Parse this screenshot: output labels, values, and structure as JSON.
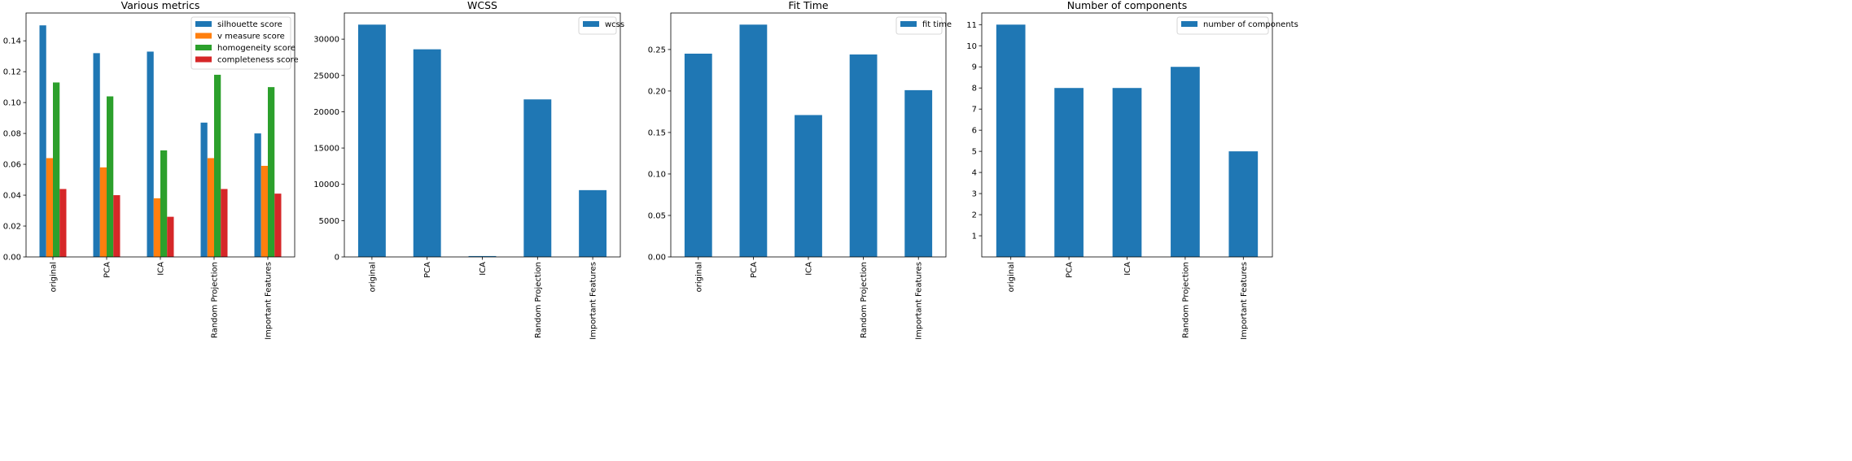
{
  "chart_data": [
    {
      "type": "bar",
      "title": "Various metrics",
      "categories": [
        "original",
        "PCA",
        "ICA",
        "Random Projection",
        "Important Features"
      ],
      "series": [
        {
          "name": "silhouette score",
          "color": "#1f77b4",
          "values": [
            0.15,
            0.132,
            0.133,
            0.087,
            0.08
          ]
        },
        {
          "name": "v measure score",
          "color": "#ff7f0e",
          "values": [
            0.064,
            0.058,
            0.038,
            0.064,
            0.059
          ]
        },
        {
          "name": "homogeneity score",
          "color": "#2ca02c",
          "values": [
            0.113,
            0.104,
            0.069,
            0.118,
            0.11
          ]
        },
        {
          "name": "completeness score",
          "color": "#d62728",
          "values": [
            0.044,
            0.04,
            0.026,
            0.044,
            0.041
          ]
        }
      ],
      "ylim": [
        0,
        0.158
      ],
      "yticks": [
        0.0,
        0.02,
        0.04,
        0.06,
        0.08,
        0.1,
        0.12,
        0.14
      ],
      "ytick_labels": [
        "0.00",
        "0.02",
        "0.04",
        "0.06",
        "0.08",
        "0.10",
        "0.12",
        "0.14"
      ],
      "legend": "top-right"
    },
    {
      "type": "bar",
      "title": "WCSS",
      "categories": [
        "original",
        "PCA",
        "ICA",
        "Random Projection",
        "Important Features"
      ],
      "series": [
        {
          "name": "wcss",
          "color": "#1f77b4",
          "values": [
            32000,
            28600,
            120,
            21700,
            9200
          ]
        }
      ],
      "ylim": [
        0,
        33600
      ],
      "yticks": [
        0,
        5000,
        10000,
        15000,
        20000,
        25000,
        30000
      ],
      "ytick_labels": [
        "0",
        "5000",
        "10000",
        "15000",
        "20000",
        "25000",
        "30000"
      ],
      "legend": "top-right"
    },
    {
      "type": "bar",
      "title": "Fit Time",
      "categories": [
        "original",
        "PCA",
        "ICA",
        "Random Projection",
        "Important Features"
      ],
      "series": [
        {
          "name": "fit time",
          "color": "#1f77b4",
          "values": [
            0.245,
            0.28,
            0.171,
            0.244,
            0.201
          ]
        }
      ],
      "ylim": [
        0,
        0.294
      ],
      "yticks": [
        0.0,
        0.05,
        0.1,
        0.15,
        0.2,
        0.25
      ],
      "ytick_labels": [
        "0.00",
        "0.05",
        "0.10",
        "0.15",
        "0.20",
        "0.25"
      ],
      "legend": "top-right"
    },
    {
      "type": "bar",
      "title": "Number of components",
      "categories": [
        "original",
        "PCA",
        "ICA",
        "Random Projection",
        "Important Features"
      ],
      "series": [
        {
          "name": "number of components",
          "color": "#1f77b4",
          "values": [
            11,
            8,
            8,
            9,
            5
          ]
        }
      ],
      "ylim": [
        0,
        11.55
      ],
      "yticks": [
        1,
        2,
        3,
        4,
        5,
        6,
        7,
        8,
        9,
        10,
        11
      ],
      "ytick_labels": [
        "1",
        "2",
        "3",
        "4",
        "5",
        "6",
        "7",
        "8",
        "9",
        "10",
        "11"
      ],
      "legend": "top-right"
    }
  ]
}
